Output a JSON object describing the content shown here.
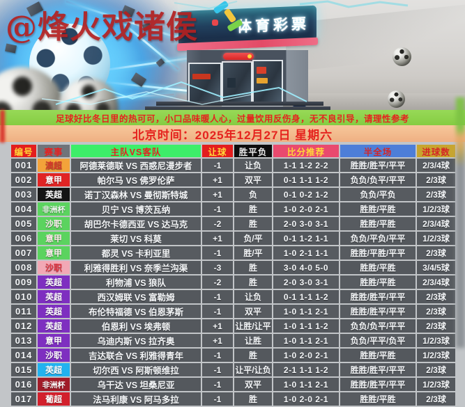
{
  "watermark": "@烽火戏诸侯",
  "hero": {
    "store_sign": "体育彩票",
    "glow_color": "#58c8f5",
    "sign_stripe_color": "#ef5d79"
  },
  "notice": {
    "text": "足球好比冬日里的热可可，小口品味暖人心，过量饮用反伤身，无不良引导，请理性参考",
    "bg": "#8ed24b",
    "fg": "#e5231e"
  },
  "datetime": {
    "text": "北京时间：2025年12月27日 星期六",
    "bg": "#f3bb8d",
    "fg": "#e5231e"
  },
  "table": {
    "headers": [
      {
        "label": "编号",
        "bg": "#e31e1e",
        "fg": "#ffd83a"
      },
      {
        "label": "赛事",
        "bg": "#70747a",
        "fg": "#e32222"
      },
      {
        "label": "主队VS客队",
        "bg": "#3dee69",
        "fg": "#e32222"
      },
      {
        "label": "让球",
        "bg": "#e31e1e",
        "fg": "#ffd83a"
      },
      {
        "label": "胜平负",
        "bg": "#0d0d0d",
        "fg": "#e9e9e9"
      },
      {
        "label": "比分推荐",
        "bg": "#e94a6e",
        "fg": "#ffd83a"
      },
      {
        "label": "半全场",
        "bg": "#4d7ed8",
        "fg": "#d42626"
      },
      {
        "label": "进球数",
        "bg": "#c7a52f",
        "fg": "#d42626"
      }
    ],
    "rows": [
      {
        "id": "001",
        "league": "澳超",
        "league_bg": "#f3a33a",
        "league_fg": "#d5392b",
        "match": "阿德莱德联 VS 西惑尼漫步者",
        "handicap": "-1",
        "wdl": "让负",
        "score": "1-1 1-2 2-2",
        "half_full": "胜胜/胜平/平平",
        "goals": "2/3/4球"
      },
      {
        "id": "002",
        "league": "意甲",
        "league_bg": "#e02424",
        "league_fg": "#ffffff",
        "match": "帕尔马 VS 佛罗伦萨",
        "handicap": "+1",
        "wdl": "双平",
        "score": "0-1 1-1 1-2",
        "half_full": "负负/负平/平平",
        "goals": "2/3球"
      },
      {
        "id": "003",
        "league": "英超",
        "league_bg": "#141414",
        "league_fg": "#ffffff",
        "match": "诺丁汉森林 VS 曼彻斯特城",
        "handicap": "+1",
        "wdl": "负",
        "score": "0-1 0-2 1-2",
        "half_full": "负负/平负",
        "goals": "2/3球"
      },
      {
        "id": "004",
        "league": "非洲杯",
        "league_bg": "#5bd35f",
        "league_fg": "#f2f6f2",
        "match": "贝宁 VS 博茨瓦纳",
        "handicap": "-1",
        "wdl": "胜",
        "score": "1-0 2-0 2-1",
        "half_full": "胜胜/平胜",
        "goals": "1/2/3球"
      },
      {
        "id": "005",
        "league": "沙职",
        "league_bg": "#5bd35f",
        "league_fg": "#ffeef2",
        "match": "胡巴尔卡德西亚 VS 达马克",
        "handicap": "-2",
        "wdl": "胜",
        "score": "2-0 3-0 3-1",
        "half_full": "胜胜/平胜",
        "goals": "2/3/4球"
      },
      {
        "id": "006",
        "league": "意甲",
        "league_bg": "#5bd35f",
        "league_fg": "#ffe9ec",
        "match": "莱切 VS 科莫",
        "handicap": "+1",
        "wdl": "负/平",
        "score": "0-1 1-2 1-1",
        "half_full": "负负/平负/平平",
        "goals": "1/2/3球"
      },
      {
        "id": "007",
        "league": "意甲",
        "league_bg": "#5bd35f",
        "league_fg": "#ffeef2",
        "match": "都灵 VS 卡利亚里",
        "handicap": "-1",
        "wdl": "胜/平",
        "score": "1-0 2-1 1-1",
        "half_full": "胜胜/平胜/平平",
        "goals": "2/3球"
      },
      {
        "id": "008",
        "league": "沙职",
        "league_bg": "#f2a8b5",
        "league_fg": "#e03340",
        "match": "利雅得胜利 VS 奈季兰沟渠",
        "handicap": "-3",
        "wdl": "胜",
        "score": "3-0 4-0 5-0",
        "half_full": "胜胜/平胜",
        "goals": "3/4/5球"
      },
      {
        "id": "009",
        "league": "英超",
        "league_bg": "#7e2fc0",
        "league_fg": "#ffffff",
        "match": "利物浦 VS 狼队",
        "handicap": "-2",
        "wdl": "胜",
        "score": "2-0 3-0 3-1",
        "half_full": "胜胜/平胜",
        "goals": "2/3/4球"
      },
      {
        "id": "010",
        "league": "英超",
        "league_bg": "#7e2fc0",
        "league_fg": "#ffffff",
        "match": "西汉姆联 VS 富勒姆",
        "handicap": "-1",
        "wdl": "让负",
        "score": "0-1 1-1 1-2",
        "half_full": "胜胜/胜平/平平",
        "goals": "2/3球"
      },
      {
        "id": "011",
        "league": "英超",
        "league_bg": "#7e2fc0",
        "league_fg": "#ffffff",
        "match": "布伦特福德 VS 伯恩茅斯",
        "handicap": "-1",
        "wdl": "双平",
        "score": "1-0 1-1 2-1",
        "half_full": "胜胜/胜平/平平",
        "goals": "2/3球"
      },
      {
        "id": "012",
        "league": "英超",
        "league_bg": "#7e2fc0",
        "league_fg": "#ffffff",
        "match": "伯恩利 VS 埃弗顿",
        "handicap": "+1",
        "wdl": "让胜/让平",
        "score": "1-0 1-1 1-2",
        "half_full": "负负/负平/平平",
        "goals": "2/3球"
      },
      {
        "id": "013",
        "league": "意甲",
        "league_bg": "#7e2fc0",
        "league_fg": "#ffffff",
        "match": "乌迪内斯 VS 拉齐奥",
        "handicap": "+1",
        "wdl": "让胜",
        "score": "1-0 1-1 2-1",
        "half_full": "负负/平平/负平",
        "goals": "1/2/3球"
      },
      {
        "id": "014",
        "league": "沙职",
        "league_bg": "#7e2fc0",
        "league_fg": "#ffffff",
        "match": "吉达联合 VS 利雅得青年",
        "handicap": "-1",
        "wdl": "胜",
        "score": "1-0 2-0 2-1",
        "half_full": "胜胜/平胜",
        "goals": "1/2/3球"
      },
      {
        "id": "015",
        "league": "英超",
        "league_bg": "#22b2ef",
        "league_fg": "#ffffff",
        "match": "切尔西 VS 阿斯顿维拉",
        "handicap": "-1",
        "wdl": "让平/让负",
        "score": "2-1 1-1 1-2",
        "half_full": "胜胜/胜平/平平",
        "goals": "2/3球"
      },
      {
        "id": "016",
        "league": "非洲杯",
        "league_bg": "#a11b28",
        "league_fg": "#ffffff",
        "match": "乌干达 VS 坦桑尼亚",
        "handicap": "-1",
        "wdl": "双平",
        "score": "1-0 1-1 2-1",
        "half_full": "胜胜/胜平/平平",
        "goals": "1/2/3球"
      },
      {
        "id": "017",
        "league": "葡超",
        "league_bg": "#d2202c",
        "league_fg": "#ffffff",
        "match": "法马利康 VS 阿马多拉",
        "handicap": "-1",
        "wdl": "胜",
        "score": "1-0 2-0 2-1",
        "half_full": "胜胜/平胜",
        "goals": "2/3球"
      }
    ]
  }
}
